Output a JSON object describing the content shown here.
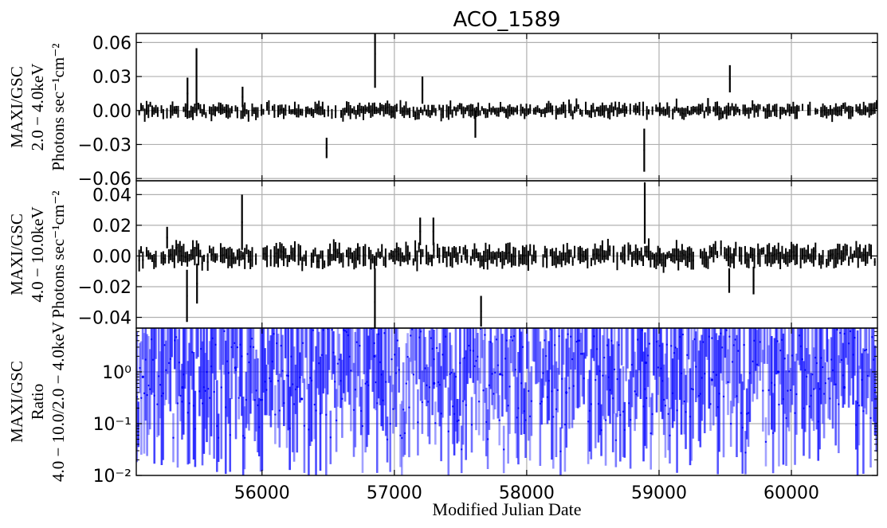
{
  "chart_data": {
    "type": "scatter",
    "title": "ACO_1589",
    "xlabel": "Modified Julian Date",
    "xlim": [
      55050,
      60650
    ],
    "xticks": [
      56000,
      57000,
      58000,
      59000,
      60000
    ],
    "grid": true,
    "panels": [
      {
        "ylabel_lines": [
          "MAXI/GSC",
          "2.0 − 4.0keV",
          "Photons sec⁻¹cm⁻²"
        ],
        "ylim": [
          -0.062,
          0.068
        ],
        "yticks": [
          0.06,
          0.03,
          0.0,
          -0.03,
          -0.06
        ],
        "ytick_labels": [
          "0.06",
          "0.03",
          "0.00",
          "−0.03",
          "−0.06"
        ],
        "series": {
          "color": "#000000",
          "x": [
            55437,
            55505,
            55853,
            56488,
            56854,
            57212,
            57612,
            58888,
            59370,
            59535
          ],
          "y": [
            0.015,
            0.03,
            0.012,
            -0.033,
            0.05,
            0.018,
            -0.012,
            -0.035,
            0.006,
            0.028
          ],
          "yerr": [
            0.014,
            0.025,
            0.009,
            0.009,
            0.03,
            0.012,
            0.012,
            0.019,
            0.005,
            0.012
          ]
        }
      },
      {
        "ylabel_lines": [
          "MAXI/GSC",
          "4.0 − 10.0keV",
          "Photons sec⁻¹cm⁻²"
        ],
        "ylim": [
          -0.047,
          0.049
        ],
        "yticks": [
          0.04,
          0.02,
          0.0,
          -0.02,
          -0.04
        ],
        "ytick_labels": [
          "0.04",
          "0.02",
          "0.00",
          "−0.02",
          "−0.04"
        ],
        "series": {
          "color": "#000000",
          "x": [
            55283,
            55433,
            55509,
            55849,
            56853,
            57195,
            57295,
            57655,
            58892,
            59530,
            59714
          ],
          "y": [
            0.012,
            -0.026,
            -0.018,
            0.022,
            -0.03,
            0.016,
            0.016,
            -0.036,
            0.028,
            -0.016,
            -0.016
          ],
          "yerr": [
            0.007,
            0.017,
            0.013,
            0.018,
            0.022,
            0.009,
            0.009,
            0.01,
            0.02,
            0.008,
            0.009
          ]
        }
      },
      {
        "ylabel_lines": [
          "MAXI/GSC",
          "Ratio",
          "4.0 − 10.0/2.0 − 4.0keV"
        ],
        "yscale": "log",
        "ylim": [
          0.01,
          7
        ],
        "yticks": [
          0.01,
          0.1,
          1
        ],
        "ytick_labels": [
          "10⁻²",
          "10⁻¹",
          "10⁰"
        ],
        "series": {
          "color": "#0000ff",
          "x": [
            55100,
            55400,
            55800,
            56300,
            56850,
            57300,
            57800,
            58300,
            58900,
            59400,
            59900,
            60400
          ],
          "y": [
            0.8,
            0.5,
            1.2,
            0.3,
            2.0,
            0.6,
            0.9,
            0.4,
            1.5,
            0.7,
            1.0,
            0.5
          ]
        }
      }
    ]
  }
}
